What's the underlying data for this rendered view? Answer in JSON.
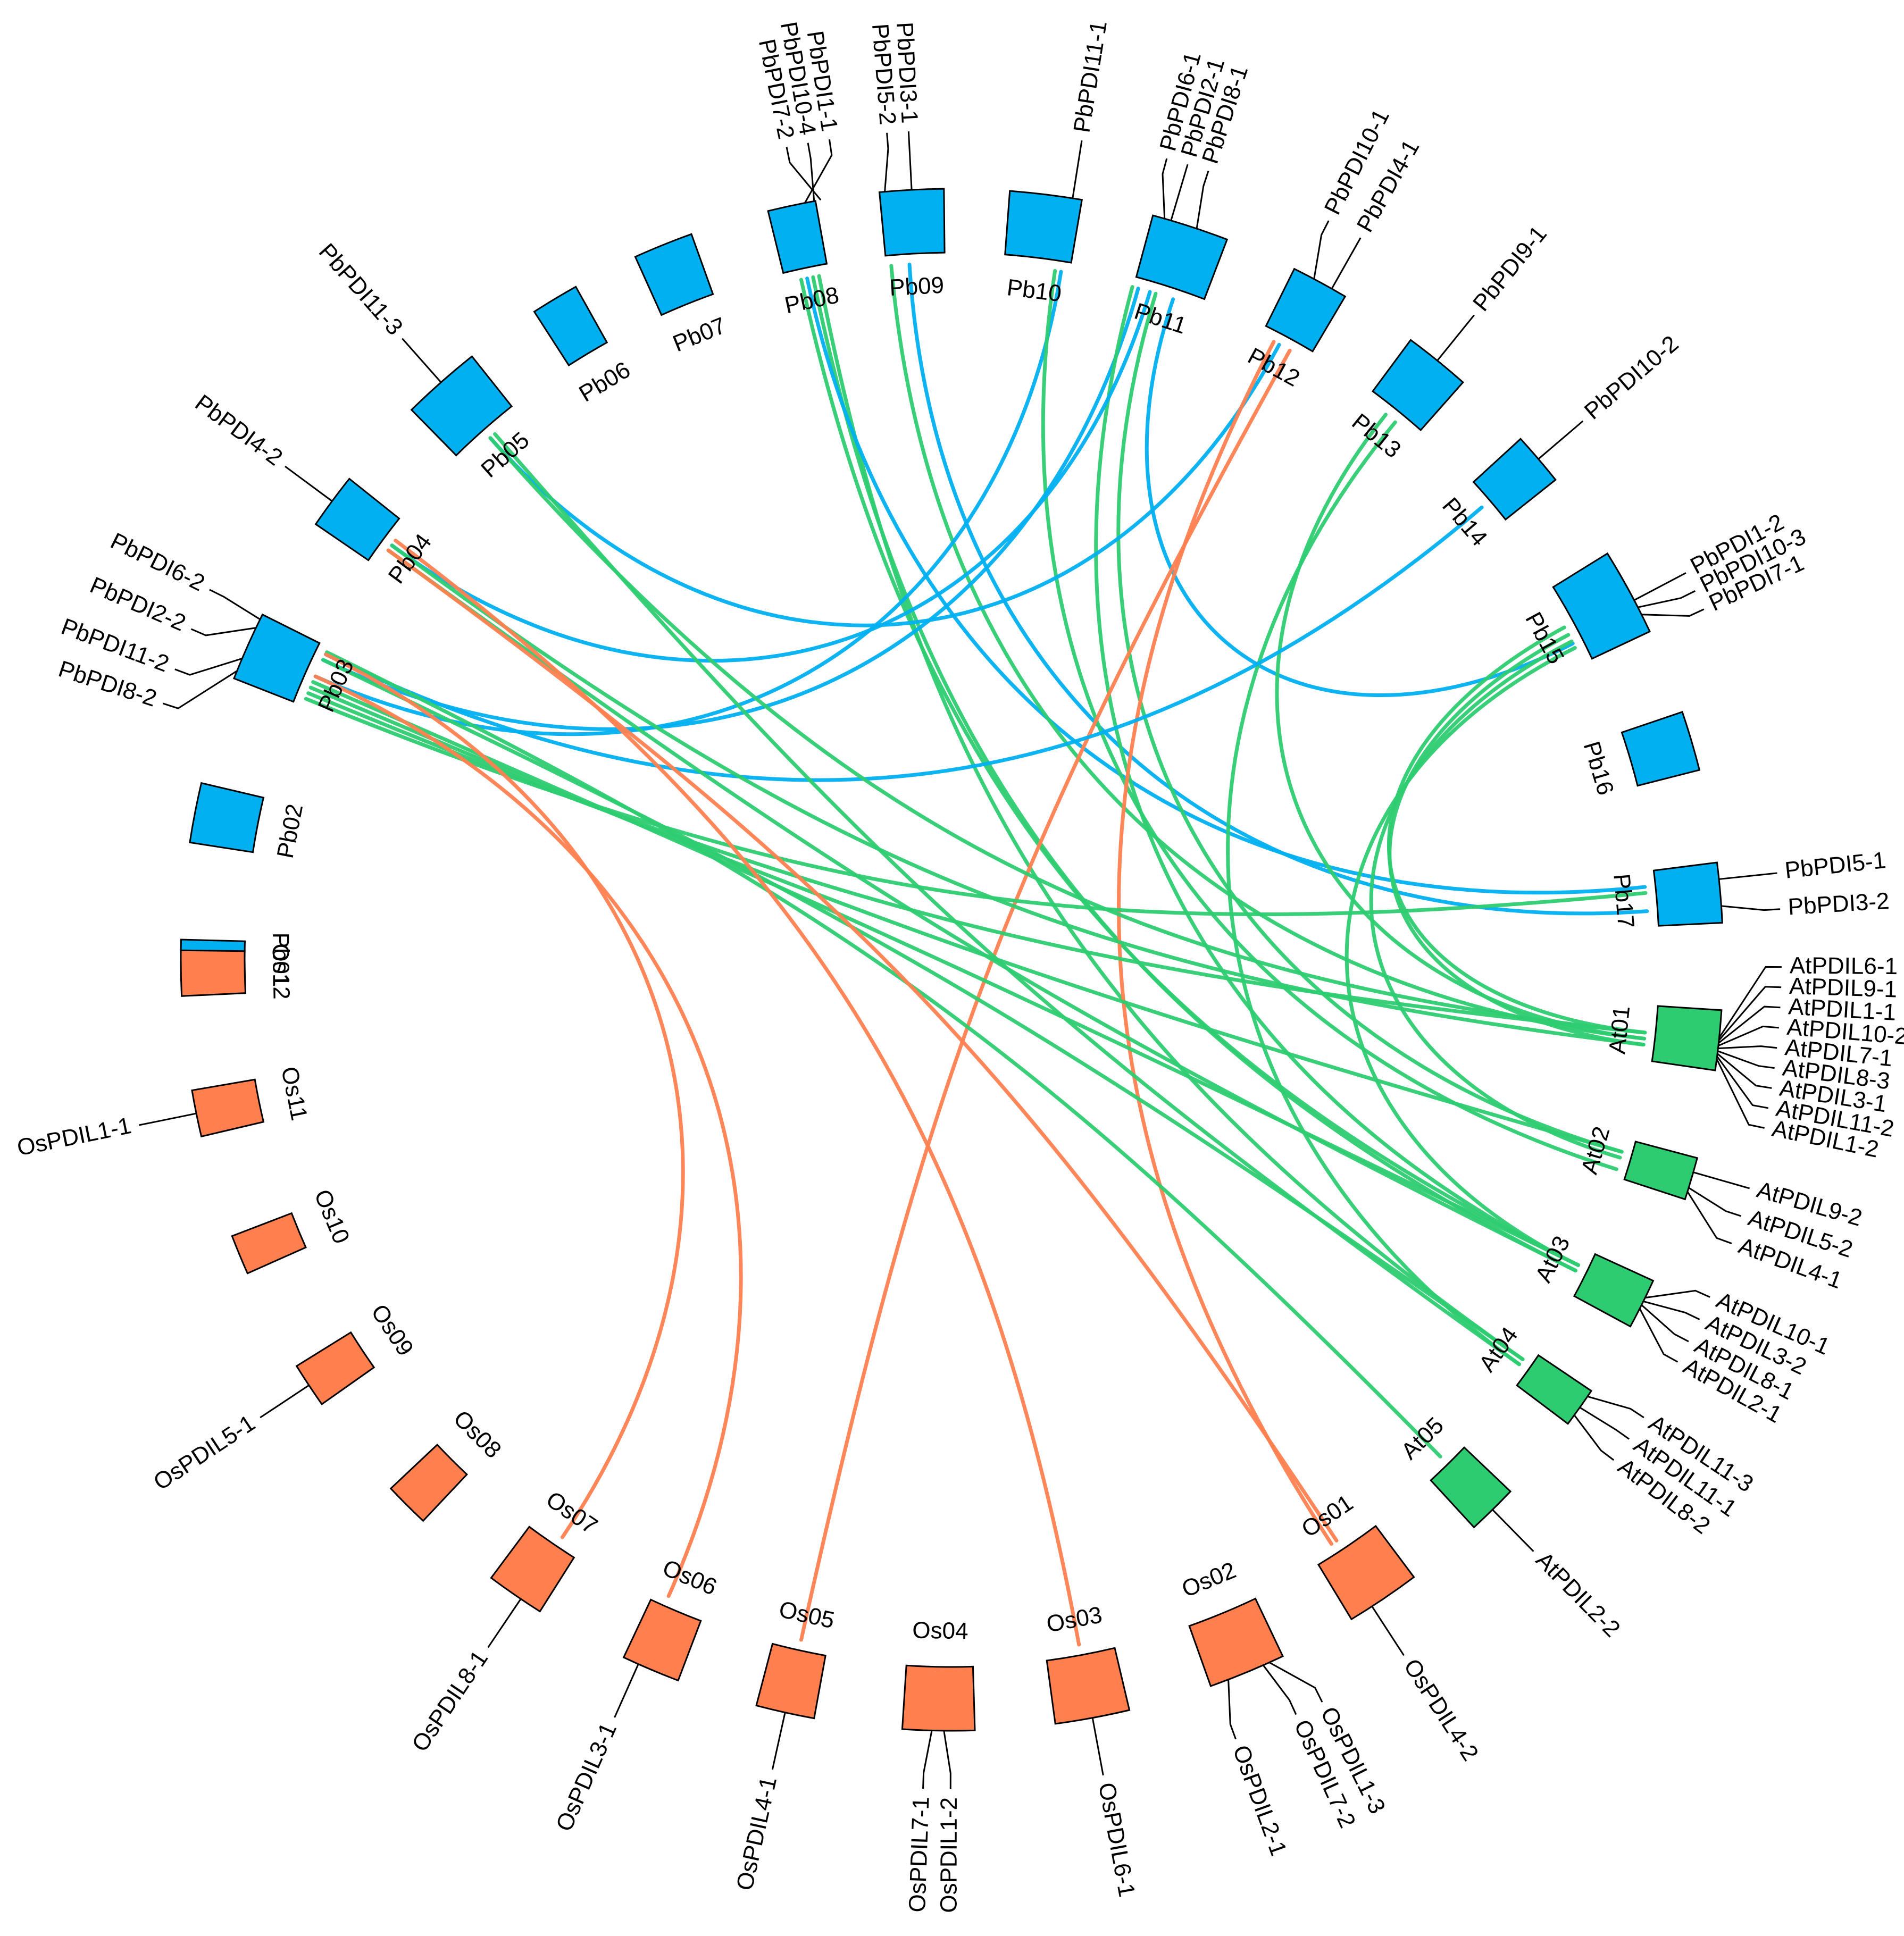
{
  "colors": {
    "pb": "#00b0f0",
    "os": "#ff7f4f",
    "at": "#2ecc71"
  },
  "chromosomes": [
    {
      "name": "Pb01",
      "group": "pb",
      "angle": 270.0,
      "span": 3.0
    },
    {
      "name": "Pb02",
      "group": "pb",
      "angle": 259.0,
      "span": 4.5
    },
    {
      "name": "Pb03",
      "group": "pb",
      "angle": 246.0,
      "span": 5.2
    },
    {
      "name": "Pb04",
      "group": "pb",
      "angle": 233.5,
      "span": 4.2
    },
    {
      "name": "Pb05",
      "group": "pb",
      "angle": 221.5,
      "span": 6.0
    },
    {
      "name": "Pb06",
      "group": "pb",
      "angle": 211.0,
      "span": 3.6
    },
    {
      "name": "Pb07",
      "group": "pb",
      "angle": 202.0,
      "span": 4.5
    },
    {
      "name": "Pb08",
      "group": "pb",
      "angle": 192.0,
      "span": 3.6
    },
    {
      "name": "Pb09",
      "group": "pb",
      "angle": 183.0,
      "span": 4.8
    },
    {
      "name": "Pb10",
      "group": "pb",
      "angle": 173.0,
      "span": 5.4
    },
    {
      "name": "Pb11",
      "group": "pb",
      "angle": 162.0,
      "span": 5.8
    },
    {
      "name": "Pb12",
      "group": "pb",
      "angle": 151.5,
      "span": 4.3
    },
    {
      "name": "Pb13",
      "group": "pb",
      "angle": 141.0,
      "span": 5.0
    },
    {
      "name": "Pb14",
      "group": "pb",
      "angle": 130.5,
      "span": 4.0
    },
    {
      "name": "Pb15",
      "group": "pb",
      "angle": 118.5,
      "span": 6.6
    },
    {
      "name": "Pb16",
      "group": "pb",
      "angle": 106.5,
      "span": 4.5
    },
    {
      "name": "Pb17",
      "group": "pb",
      "angle": 95.0,
      "span": 4.5
    },
    {
      "name": "At01",
      "group": "at",
      "angle": 84.0,
      "span": 4.5
    },
    {
      "name": "At02",
      "group": "at",
      "angle": 73.5,
      "span": 3.2
    },
    {
      "name": "At03",
      "group": "at",
      "angle": 63.5,
      "span": 3.8
    },
    {
      "name": "At04",
      "group": "at",
      "angle": 54.5,
      "span": 3.0
    },
    {
      "name": "At05",
      "group": "at",
      "angle": 44.5,
      "span": 3.8
    },
    {
      "name": "Os01",
      "group": "os",
      "angle": 34.0,
      "span": 5.6
    },
    {
      "name": "Os02",
      "group": "os",
      "angle": 22.5,
      "span": 5.8
    },
    {
      "name": "Os03",
      "group": "os",
      "angle": 10.5,
      "span": 5.6
    },
    {
      "name": "Os04",
      "group": "os",
      "angle": 359.0,
      "span": 5.4
    },
    {
      "name": "Os05",
      "group": "os",
      "angle": 347.5,
      "span": 4.4
    },
    {
      "name": "Os06",
      "group": "os",
      "angle": 337.0,
      "span": 4.4
    },
    {
      "name": "Os07",
      "group": "os",
      "angle": 325.5,
      "span": 4.4
    },
    {
      "name": "Os08",
      "group": "os",
      "angle": 315.0,
      "span": 3.4
    },
    {
      "name": "Os09",
      "group": "os",
      "angle": 303.5,
      "span": 3.4
    },
    {
      "name": "Os10",
      "group": "os",
      "angle": 292.5,
      "span": 3.0
    },
    {
      "name": "Os11",
      "group": "os",
      "angle": 281.5,
      "span": 3.5
    },
    {
      "name": "Os12",
      "group": "os",
      "angle": 271.0,
      "span": 3.4
    }
  ],
  "genes": [
    {
      "name": "PbPDI8-2",
      "angle": 248.0,
      "label_angle": 252.0
    },
    {
      "name": "PbPDI11-2",
      "angle": 247.0,
      "label_angle": 249.5
    },
    {
      "name": "PbPDI2-2",
      "angle": 244.5,
      "label_angle": 246.5
    },
    {
      "name": "PbPDI6-2",
      "angle": 243.8,
      "label_angle": 243.5
    },
    {
      "name": "PbPDI4-2",
      "angle": 233.5,
      "label_angle": 233.5
    },
    {
      "name": "PbPDI11-3",
      "angle": 221.5,
      "label_angle": 221.5
    },
    {
      "name": "PbPDI1-1",
      "angle": 191.0,
      "label_angle": 188.5
    },
    {
      "name": "PbPDI10-4",
      "angle": 190.3,
      "label_angle": 190.0
    },
    {
      "name": "PbPDI7-2",
      "angle": 189.8,
      "label_angle": 191.5
    },
    {
      "name": "PbPDI5-2",
      "angle": 185.0,
      "label_angle": 184.5
    },
    {
      "name": "PbPDI3-1",
      "angle": 183.0,
      "label_angle": 183.0
    },
    {
      "name": "PbPDI11-1",
      "angle": 171.0,
      "label_angle": 171.0
    },
    {
      "name": "PbPDI6-1",
      "angle": 164.0,
      "label_angle": 165.0
    },
    {
      "name": "PbPDI2-1",
      "angle": 163.5,
      "label_angle": 163.5
    },
    {
      "name": "PbPDI8-1",
      "angle": 161.5,
      "label_angle": 162.0
    },
    {
      "name": "PbPDI10-1",
      "angle": 152.0,
      "label_angle": 153.0
    },
    {
      "name": "PbPDI4-1",
      "angle": 150.5,
      "label_angle": 150.5
    },
    {
      "name": "PbPDI9-1",
      "angle": 141.0,
      "label_angle": 141.0
    },
    {
      "name": "PbPDI10-2",
      "angle": 130.5,
      "label_angle": 130.5
    },
    {
      "name": "PbPDI1-2",
      "angle": 117.8,
      "label_angle": 117.8
    },
    {
      "name": "PbPDI10-3",
      "angle": 117.2,
      "label_angle": 116.4
    },
    {
      "name": "PbPDI7-1",
      "angle": 116.6,
      "label_angle": 115.0
    },
    {
      "name": "PbPDI5-1",
      "angle": 96.0,
      "label_angle": 96.0
    },
    {
      "name": "PbPDI3-2",
      "angle": 94.0,
      "label_angle": 93.5
    },
    {
      "name": "AtPDIL6-1",
      "angle": 84.2,
      "label_angle": 89.5
    },
    {
      "name": "AtPDIL9-1",
      "angle": 84.0,
      "label_angle": 88.1
    },
    {
      "name": "AtPDIL1-1",
      "angle": 83.8,
      "label_angle": 86.7
    },
    {
      "name": "AtPDIL10-2",
      "angle": 83.6,
      "label_angle": 85.3
    },
    {
      "name": "AtPDIL7-1",
      "angle": 83.4,
      "label_angle": 83.9
    },
    {
      "name": "AtPDIL8-3",
      "angle": 83.2,
      "label_angle": 82.5
    },
    {
      "name": "AtPDIL3-1",
      "angle": 83.0,
      "label_angle": 81.1
    },
    {
      "name": "AtPDIL11-2",
      "angle": 82.8,
      "label_angle": 79.7
    },
    {
      "name": "AtPDIL1-2",
      "angle": 82.6,
      "label_angle": 78.3
    },
    {
      "name": "AtPDIL9-2",
      "angle": 74.0,
      "label_angle": 74.0
    },
    {
      "name": "AtPDIL5-2",
      "angle": 72.8,
      "label_angle": 72.0
    },
    {
      "name": "AtPDIL4-1",
      "angle": 72.5,
      "label_angle": 70.0
    },
    {
      "name": "AtPDIL10-1",
      "angle": 64.0,
      "label_angle": 66.0
    },
    {
      "name": "AtPDIL3-2",
      "angle": 63.7,
      "label_angle": 64.3
    },
    {
      "name": "AtPDIL8-1",
      "angle": 63.4,
      "label_angle": 62.6
    },
    {
      "name": "AtPDIL2-1",
      "angle": 63.1,
      "label_angle": 61.0
    },
    {
      "name": "AtPDIL11-3",
      "angle": 55.5,
      "label_angle": 56.5
    },
    {
      "name": "AtPDIL11-1",
      "angle": 54.5,
      "label_angle": 54.7
    },
    {
      "name": "AtPDIL8-2",
      "angle": 53.8,
      "label_angle": 52.9
    },
    {
      "name": "AtPDIL2-2",
      "angle": 44.5,
      "label_angle": 44.5
    },
    {
      "name": "OsPDIL4-2",
      "angle": 33.0,
      "label_angle": 33.0
    },
    {
      "name": "OsPDIL2-1",
      "angle": 21.0,
      "label_angle": 20.0
    },
    {
      "name": "OsPDIL7-2",
      "angle": 23.8,
      "label_angle": 24.5
    },
    {
      "name": "OsPDIL1-3",
      "angle": 24.3,
      "label_angle": 26.5
    },
    {
      "name": "OsPDIL6-1",
      "angle": 10.5,
      "label_angle": 10.5
    },
    {
      "name": "OsPDIL7-1",
      "angle": 358.5,
      "label_angle": 358.0
    },
    {
      "name": "OsPDIL1-2",
      "angle": 359.4,
      "label_angle": 359.9
    },
    {
      "name": "OsPDIL4-1",
      "angle": 347.5,
      "label_angle": 347.5
    },
    {
      "name": "OsPDIL3-1",
      "angle": 336.0,
      "label_angle": 336.0
    },
    {
      "name": "OsPDIL8-1",
      "angle": 326.0,
      "label_angle": 326.0
    },
    {
      "name": "OsPDIL5-1",
      "angle": 303.5,
      "label_angle": 303.5
    },
    {
      "name": "OsPDIL1-1",
      "angle": 281.5,
      "label_angle": 281.5
    }
  ],
  "links": [
    {
      "from": 192.5,
      "to": 64.0,
      "color": "at"
    },
    {
      "from": 191.5,
      "to": 63.5,
      "color": "at"
    },
    {
      "from": 191.0,
      "to": 55.0,
      "color": "at"
    },
    {
      "from": 192.0,
      "to": 96.0,
      "color": "pb"
    },
    {
      "from": 183.5,
      "to": 94.0,
      "color": "pb"
    },
    {
      "from": 185.0,
      "to": 83.5,
      "color": "at"
    },
    {
      "from": 171.0,
      "to": 246.0,
      "color": "pb"
    },
    {
      "from": 171.5,
      "to": 72.5,
      "color": "at"
    },
    {
      "from": 164.5,
      "to": 244.5,
      "color": "pb"
    },
    {
      "from": 165.0,
      "to": 64.0,
      "color": "at"
    },
    {
      "from": 163.5,
      "to": 233.5,
      "color": "pb"
    },
    {
      "from": 163.0,
      "to": 74.0,
      "color": "at"
    },
    {
      "from": 161.5,
      "to": 117.0,
      "color": "pb"
    },
    {
      "from": 152.0,
      "to": 221.5,
      "color": "pb"
    },
    {
      "from": 152.5,
      "to": 33.0,
      "color": "os"
    },
    {
      "from": 151.0,
      "to": 347.5,
      "color": "os"
    },
    {
      "from": 141.5,
      "to": 83.5,
      "color": "at"
    },
    {
      "from": 140.5,
      "to": 54.5,
      "color": "at"
    },
    {
      "from": 130.5,
      "to": 244.0,
      "color": "pb"
    },
    {
      "from": 118.5,
      "to": 84.0,
      "color": "at"
    },
    {
      "from": 117.8,
      "to": 83.0,
      "color": "at"
    },
    {
      "from": 117.2,
      "to": 73.5,
      "color": "at"
    },
    {
      "from": 116.6,
      "to": 64.0,
      "color": "at"
    },
    {
      "from": 95.5,
      "to": 248.0,
      "color": "at"
    },
    {
      "from": 247.5,
      "to": 84.0,
      "color": "at"
    },
    {
      "from": 247.0,
      "to": 74.0,
      "color": "at"
    },
    {
      "from": 246.5,
      "to": 64.0,
      "color": "at"
    },
    {
      "from": 244.5,
      "to": 55.0,
      "color": "at"
    },
    {
      "from": 243.8,
      "to": 44.5,
      "color": "at"
    },
    {
      "from": 233.5,
      "to": 83.0,
      "color": "at"
    },
    {
      "from": 234.0,
      "to": 63.5,
      "color": "at"
    },
    {
      "from": 221.5,
      "to": 84.0,
      "color": "at"
    },
    {
      "from": 221.0,
      "to": 54.5,
      "color": "at"
    },
    {
      "from": 244.0,
      "to": 326.0,
      "color": "os"
    },
    {
      "from": 233.0,
      "to": 10.5,
      "color": "os"
    },
    {
      "from": 246.0,
      "to": 336.0,
      "color": "os"
    },
    {
      "from": 234.0,
      "to": 33.5,
      "color": "os"
    }
  ]
}
